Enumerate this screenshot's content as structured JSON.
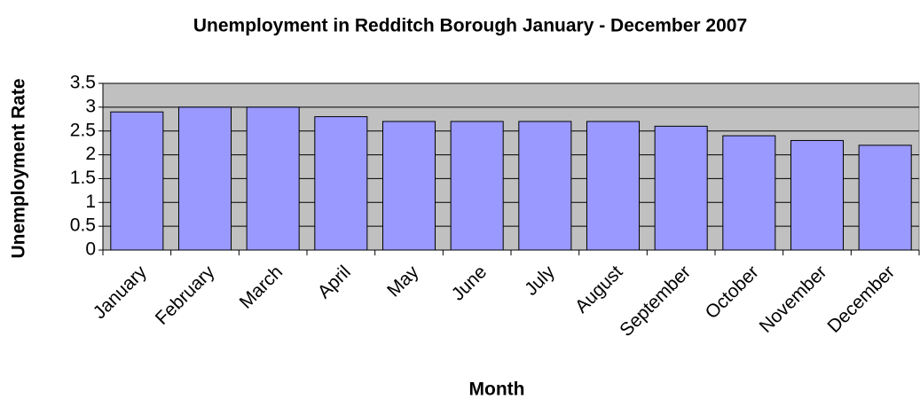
{
  "chart_data": {
    "type": "bar",
    "title": "Unemployment in Redditch Borough January - December 2007",
    "x_label": "Month",
    "y_label": "Unemployment Rate",
    "categories": [
      "January",
      "February",
      "March",
      "April",
      "May",
      "June",
      "July",
      "August",
      "September",
      "October",
      "November",
      "December"
    ],
    "values": [
      2.9,
      3.0,
      3.0,
      2.8,
      2.7,
      2.7,
      2.7,
      2.7,
      2.6,
      2.4,
      2.3,
      2.2
    ],
    "color": "#9999ff",
    "ylim": [
      0,
      3.5
    ],
    "yticks": [
      0,
      0.5,
      1,
      1.5,
      2,
      2.5,
      3,
      3.5
    ],
    "grid": true
  }
}
